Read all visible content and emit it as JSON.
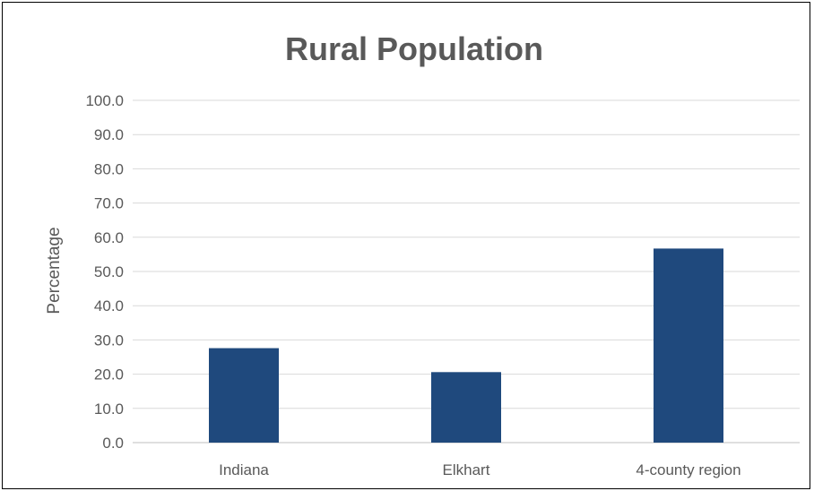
{
  "chart_data": {
    "type": "bar",
    "title": "Rural Population",
    "xlabel": "",
    "ylabel": "Percentage",
    "categories": [
      "Indiana",
      "Elkhart",
      "4-county region"
    ],
    "values": [
      27.6,
      20.6,
      56.7
    ],
    "ylim": [
      0,
      100
    ],
    "yticks": [
      "0.0",
      "10.0",
      "20.0",
      "30.0",
      "40.0",
      "50.0",
      "60.0",
      "70.0",
      "80.0",
      "90.0",
      "100.0"
    ],
    "grid": true,
    "legend": "none",
    "bar_color": "#1f497d",
    "grid_color": "#d9d9d9",
    "text_color": "#595959"
  }
}
